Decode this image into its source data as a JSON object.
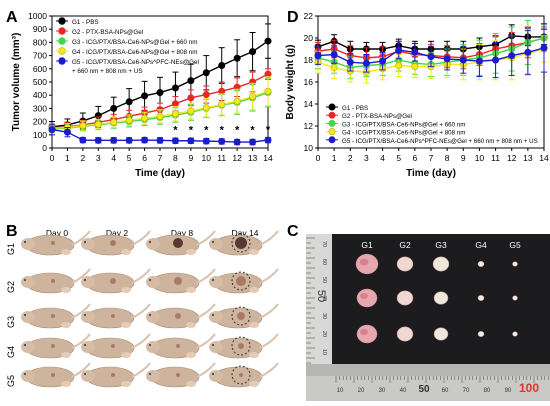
{
  "panels": {
    "a": "A",
    "b": "B",
    "c": "C",
    "d": "D"
  },
  "colors": {
    "g1": "#000000",
    "g2": "#e8262a",
    "g3": "#44d544",
    "g4": "#f3e81c",
    "g5": "#1c1ccf"
  },
  "chart_data": [
    {
      "id": "tumor-volume",
      "type": "line",
      "xlabel": "Time (day)",
      "ylabel": "Tumor volume (mm³)",
      "xlim": [
        0,
        14
      ],
      "ylim": [
        0,
        1000
      ],
      "xticks": [
        0,
        1,
        2,
        3,
        4,
        5,
        6,
        7,
        8,
        9,
        10,
        11,
        12,
        13,
        14
      ],
      "yticks": [
        0,
        100,
        200,
        300,
        400,
        500,
        600,
        700,
        800,
        900,
        1000
      ],
      "x": [
        0,
        1,
        2,
        3,
        4,
        5,
        6,
        7,
        8,
        9,
        10,
        11,
        12,
        13,
        14
      ],
      "legend_position": "top-left",
      "series": [
        {
          "name": "G1 - PBS",
          "color": "#000000",
          "values": [
            160,
            175,
            205,
            245,
            300,
            350,
            395,
            420,
            455,
            510,
            570,
            625,
            680,
            730,
            810
          ],
          "errors": [
            40,
            45,
            60,
            70,
            85,
            100,
            110,
            115,
            120,
            125,
            130,
            135,
            140,
            145,
            130
          ]
        },
        {
          "name": "G2 - PTX-BSA-NPs@Gel",
          "color": "#e8262a",
          "values": [
            150,
            160,
            175,
            195,
            215,
            240,
            265,
            290,
            335,
            380,
            405,
            430,
            460,
            500,
            560
          ],
          "errors": [
            30,
            35,
            35,
            40,
            40,
            45,
            45,
            50,
            55,
            60,
            65,
            70,
            70,
            75,
            40
          ]
        },
        {
          "name": "G3 - ICG/PTX/BSA-Ce6-NPs@Gel + 660 nm",
          "color": "#44d544",
          "values": [
            145,
            150,
            165,
            175,
            190,
            200,
            215,
            230,
            250,
            270,
            300,
            325,
            345,
            380,
            420
          ],
          "errors": [
            30,
            30,
            35,
            35,
            40,
            40,
            45,
            50,
            55,
            60,
            70,
            80,
            90,
            100,
            110
          ]
        },
        {
          "name": "G4 - ICG/PTX/BSA-Ce6-NPs@Gel + 808 nm",
          "color": "#f3e81c",
          "values": [
            150,
            155,
            170,
            180,
            195,
            210,
            225,
            240,
            260,
            280,
            305,
            330,
            355,
            390,
            430
          ],
          "errors": [
            30,
            30,
            35,
            35,
            40,
            40,
            45,
            50,
            55,
            60,
            70,
            80,
            90,
            100,
            110
          ]
        },
        {
          "name": "G5 - ICG/PTX/BSA-Ce6-NPs^PFC-NEs@Gel + 660 nm + 808 nm + US",
          "color": "#1c1ccf",
          "legend_lines": [
            "G5 - ICG/PTX/BSA-Ce6-NPs^PFC-NEs@Gel",
            "+ 660 nm + 808 nm + US"
          ],
          "values": [
            140,
            120,
            60,
            58,
            58,
            58,
            60,
            58,
            55,
            55,
            52,
            50,
            45,
            45,
            60
          ],
          "errors": [
            40,
            35,
            20,
            20,
            20,
            20,
            20,
            20,
            20,
            20,
            20,
            20,
            20,
            20,
            20
          ]
        }
      ],
      "annotations": [
        {
          "text": "*",
          "x": 8,
          "y": 110
        },
        {
          "text": "*",
          "x": 9,
          "y": 110
        },
        {
          "text": "*",
          "x": 10,
          "y": 110
        },
        {
          "text": "*",
          "x": 11,
          "y": 110
        },
        {
          "text": "*",
          "x": 12,
          "y": 110
        },
        {
          "text": "*",
          "x": 13,
          "y": 110
        },
        {
          "text": "*",
          "x": 14,
          "y": 115
        }
      ]
    },
    {
      "id": "body-weight",
      "type": "line",
      "xlabel": "Time (day)",
      "ylabel": "Body weight (g)",
      "xlim": [
        0,
        14
      ],
      "ylim": [
        10,
        22
      ],
      "xticks": [
        0,
        1,
        2,
        3,
        4,
        5,
        6,
        7,
        8,
        9,
        10,
        11,
        12,
        13,
        14
      ],
      "yticks": [
        10,
        12,
        14,
        16,
        18,
        20,
        22
      ],
      "x": [
        0,
        1,
        2,
        3,
        4,
        5,
        6,
        7,
        8,
        9,
        10,
        11,
        12,
        13,
        14
      ],
      "legend_position": "center",
      "series": [
        {
          "name": "G1 - PBS",
          "color": "#000000",
          "values": [
            19.2,
            19.7,
            19.0,
            19.0,
            19.0,
            19.3,
            19.0,
            19.0,
            19.0,
            19.0,
            19.2,
            19.4,
            20.2,
            20.1,
            20.1
          ],
          "errors": [
            0.6,
            0.6,
            0.7,
            0.6,
            0.6,
            0.6,
            0.7,
            0.7,
            0.7,
            0.7,
            0.8,
            0.8,
            1.0,
            0.8,
            0.7
          ]
        },
        {
          "name": "G2 - PTX-BSA-NPs@Gel",
          "color": "#e8262a",
          "values": [
            18.8,
            19.0,
            18.4,
            18.2,
            18.3,
            18.8,
            18.5,
            18.4,
            18.3,
            18.2,
            18.5,
            19.0,
            19.3,
            19.6,
            20.0
          ],
          "errors": [
            0.8,
            0.8,
            0.9,
            0.9,
            0.9,
            0.9,
            1.0,
            1.0,
            1.0,
            1.0,
            1.0,
            1.1,
            1.2,
            1.4,
            1.0
          ]
        },
        {
          "name": "G3 - ICG/PTX/BSA-Ce6-NPs@Gel + 660 nm",
          "color": "#44d544",
          "values": [
            18.2,
            17.8,
            17.3,
            17.5,
            17.6,
            18.0,
            17.7,
            17.6,
            17.8,
            18.0,
            18.2,
            18.6,
            19.0,
            19.6,
            20.0
          ],
          "errors": [
            1.0,
            1.0,
            1.0,
            1.0,
            1.0,
            1.0,
            1.0,
            1.1,
            1.2,
            1.4,
            1.6,
            1.8,
            2.0,
            2.0,
            1.2
          ]
        },
        {
          "name": "G4 - ICG/PTX/BSA-Ce6-NPs@Gel + 808 nm",
          "color": "#f3e81c",
          "values": [
            17.8,
            17.3,
            17.0,
            16.9,
            17.2,
            17.5,
            17.4,
            17.4,
            17.6,
            17.6,
            17.8,
            18.0,
            18.2,
            18.6,
            19.0
          ],
          "errors": [
            1.0,
            1.0,
            1.0,
            1.0,
            1.0,
            1.0,
            1.0,
            1.1,
            1.2,
            1.4,
            1.6,
            1.8,
            2.0,
            2.0,
            1.2
          ]
        },
        {
          "name": "G5 - ICG/PTX/BSA-Ce6-NPs^PFC-NEs@Gel + 660 nm + 808 nm + US",
          "color": "#1c1ccf",
          "values": [
            18.4,
            18.5,
            17.8,
            17.7,
            17.9,
            18.9,
            18.7,
            18.3,
            18.1,
            18.0,
            17.9,
            18.0,
            18.4,
            18.7,
            19.1
          ],
          "errors": [
            0.8,
            0.8,
            0.8,
            0.8,
            0.8,
            0.8,
            0.8,
            0.9,
            1.0,
            1.2,
            1.4,
            1.6,
            1.8,
            2.0,
            2.2
          ]
        }
      ]
    }
  ],
  "photo_grid": {
    "day_labels": [
      "Day 0",
      "Day 2",
      "Day 8",
      "Day 14"
    ],
    "group_labels": [
      "G1",
      "G2",
      "G3",
      "G4",
      "G5"
    ]
  },
  "tumor_photo": {
    "group_labels": [
      "G1",
      "G2",
      "G3",
      "G4",
      "G5"
    ],
    "ruler_vertical_labels": [
      "70",
      "60",
      "50",
      "40",
      "30",
      "20",
      "10"
    ],
    "ruler_vertical_big": "50",
    "ruler_horizontal_labels": [
      "10",
      "20",
      "30",
      "40",
      "50",
      "60",
      "70",
      "80",
      "90",
      "100"
    ]
  }
}
